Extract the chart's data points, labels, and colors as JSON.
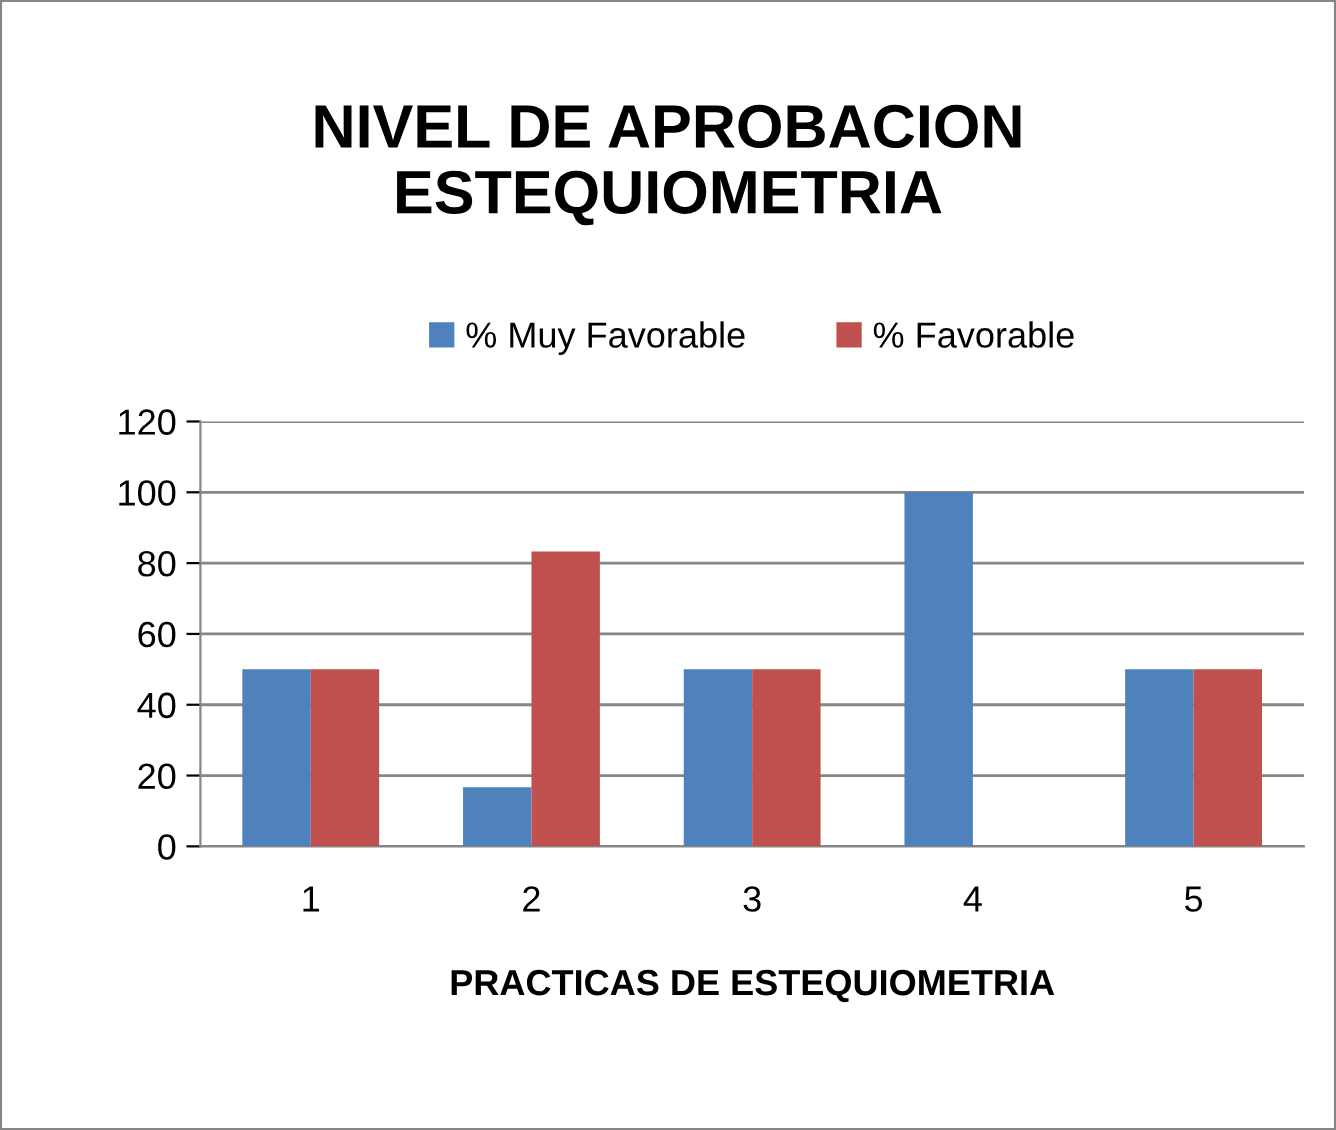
{
  "chart_data": {
    "type": "bar",
    "title": "NIVEL DE APROBACION\nESTEQUIOMETRIA",
    "xlabel": "PRACTICAS DE ESTEQUIOMETRIA",
    "categories": [
      "1",
      "2",
      "3",
      "4",
      "5"
    ],
    "series": [
      {
        "name": "% Muy Favorable",
        "color": "#4f81bd",
        "values": [
          50,
          16.7,
          50,
          100,
          50
        ]
      },
      {
        "name": "% Favorable",
        "color": "#c0504d",
        "values": [
          50,
          83.3,
          50,
          0,
          50
        ]
      }
    ],
    "ylim": [
      0,
      120
    ],
    "yticks": [
      0,
      20,
      40,
      60,
      80,
      100,
      120
    ],
    "grid": "y",
    "legend": "top"
  }
}
